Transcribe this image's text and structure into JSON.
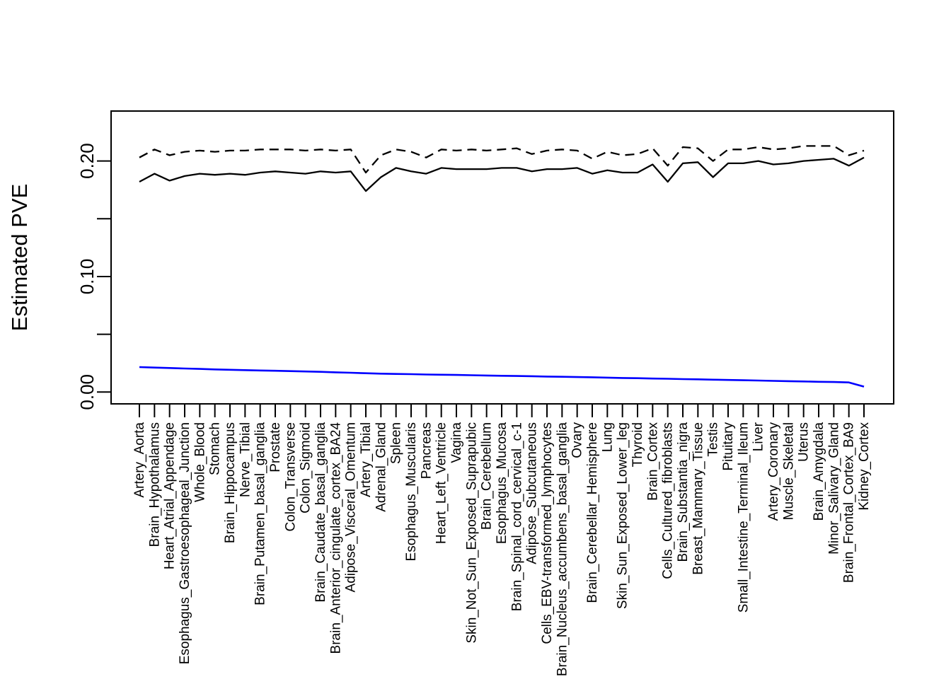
{
  "figure": {
    "background": "#FFFFFF"
  },
  "chart_data": {
    "type": "line",
    "title": "",
    "xlabel": "",
    "ylabel": "Estimated PVE",
    "ylim": [
      -0.0102,
      0.2434
    ],
    "yticks": [
      0.0,
      0.05,
      0.1,
      0.15,
      0.2
    ],
    "ytick_labels": [
      "0.00",
      "",
      "0.10",
      "",
      "0.20"
    ],
    "grid": false,
    "legend": "none",
    "categories": [
      "Artery_Aorta",
      "Brain_Hypothalamus",
      "Heart_Atrial_Appendage",
      "Esophagus_Gastroesophageal_Junction",
      "Whole_Blood",
      "Stomach",
      "Brain_Hippocampus",
      "Nerve_Tibial",
      "Brain_Putamen_basal_ganglia",
      "Prostate",
      "Colon_Transverse",
      "Colon_Sigmoid",
      "Brain_Caudate_basal_ganglia",
      "Brain_Anterior_cingulate_cortex_BA24",
      "Adipose_Visceral_Omentum",
      "Artery_Tibial",
      "Adrenal_Gland",
      "Spleen",
      "Esophagus_Muscularis",
      "Pancreas",
      "Heart_Left_Ventricle",
      "Vagina",
      "Skin_Not_Sun_Exposed_Suprapubic",
      "Brain_Cerebellum",
      "Esophagus_Mucosa",
      "Brain_Spinal_cord_cervical_c-1",
      "Adipose_Subcutaneous",
      "Cells_EBV-transformed_lymphocytes",
      "Brain_Nucleus_accumbens_basal_ganglia",
      "Ovary",
      "Brain_Cerebellar_Hemisphere",
      "Lung",
      "Skin_Sun_Exposed_Lower_leg",
      "Thyroid",
      "Brain_Cortex",
      "Cells_Cultured_fibroblasts",
      "Brain_Substantia_nigra",
      "Breast_Mammary_Tissue",
      "Testis",
      "Pituitary",
      "Small_Intestine_Terminal_Ileum",
      "Liver",
      "Artery_Coronary",
      "Muscle_Skeletal",
      "Uterus",
      "Brain_Amygdala",
      "Minor_Salivary_Gland",
      "Brain_Frontal_Cortex_BA9",
      "Kidney_Cortex"
    ],
    "series": [
      {
        "name": "upper-dashed-black",
        "style": "dashed",
        "color": "#000000",
        "values": [
          0.203,
          0.21,
          0.205,
          0.208,
          0.209,
          0.208,
          0.209,
          0.209,
          0.21,
          0.21,
          0.21,
          0.209,
          0.21,
          0.209,
          0.21,
          0.19,
          0.205,
          0.21,
          0.208,
          0.203,
          0.21,
          0.209,
          0.21,
          0.209,
          0.21,
          0.211,
          0.206,
          0.209,
          0.21,
          0.209,
          0.202,
          0.208,
          0.205,
          0.206,
          0.211,
          0.196,
          0.212,
          0.211,
          0.2,
          0.21,
          0.21,
          0.212,
          0.21,
          0.211,
          0.213,
          0.213,
          0.213,
          0.205,
          0.209
        ]
      },
      {
        "name": "middle-solid-black",
        "style": "solid",
        "color": "#000000",
        "values": [
          0.182,
          0.189,
          0.183,
          0.187,
          0.189,
          0.188,
          0.189,
          0.188,
          0.19,
          0.191,
          0.19,
          0.189,
          0.191,
          0.19,
          0.191,
          0.174,
          0.186,
          0.194,
          0.191,
          0.189,
          0.194,
          0.193,
          0.193,
          0.193,
          0.194,
          0.194,
          0.191,
          0.193,
          0.193,
          0.194,
          0.189,
          0.192,
          0.19,
          0.19,
          0.197,
          0.182,
          0.198,
          0.199,
          0.186,
          0.198,
          0.198,
          0.2,
          0.197,
          0.198,
          0.2,
          0.201,
          0.202,
          0.196,
          0.203
        ]
      },
      {
        "name": "lower-solid-blue",
        "style": "solid",
        "color": "#0000FF",
        "values": [
          0.0216,
          0.0212,
          0.0208,
          0.0204,
          0.02,
          0.0196,
          0.0193,
          0.019,
          0.0187,
          0.0184,
          0.0181,
          0.0178,
          0.0175,
          0.0171,
          0.0167,
          0.0163,
          0.0159,
          0.0157,
          0.0155,
          0.0152,
          0.015,
          0.0148,
          0.0146,
          0.0143,
          0.0141,
          0.0139,
          0.0137,
          0.0134,
          0.0132,
          0.013,
          0.0128,
          0.0125,
          0.0122,
          0.012,
          0.0117,
          0.0115,
          0.0112,
          0.011,
          0.0107,
          0.0105,
          0.0102,
          0.01,
          0.0097,
          0.0094,
          0.0092,
          0.0089,
          0.0087,
          0.0083,
          0.0047
        ]
      }
    ]
  }
}
